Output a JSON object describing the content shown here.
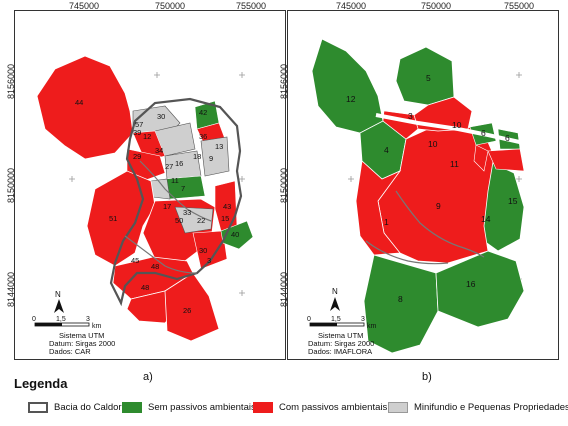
{
  "top_ticks": [
    "745000",
    "750000",
    "755000"
  ],
  "left_ticks": [
    "8156000",
    "8150000",
    "8144000"
  ],
  "panels": [
    {
      "letter": "a)",
      "info": [
        "Sistema UTM",
        "Datum: Sirgas 2000",
        "Dados: CAR"
      ],
      "scale": [
        "0",
        "1,5",
        "3",
        "km"
      ],
      "north": "N",
      "parcel_labels": [
        "44",
        "30",
        "42",
        "36",
        "39",
        "12",
        "57",
        "34",
        "29",
        "27",
        "16",
        "18",
        "13",
        "11",
        "7",
        "9",
        "51",
        "17",
        "50",
        "43",
        "33",
        "22",
        "15",
        "40",
        "30",
        "3",
        "45",
        "48",
        "48",
        "26"
      ]
    },
    {
      "letter": "b)",
      "info": [
        "Sistema UTM",
        "Datum: Sirgas 2000",
        "Dados: IMAFLORA"
      ],
      "scale": [
        "0",
        "1,5",
        "3",
        "km"
      ],
      "north": "N",
      "parcel_labels": [
        "5",
        "12",
        "3",
        "10",
        "6",
        "6",
        "4",
        "10",
        "11",
        "9",
        "15",
        "1",
        "8",
        "16",
        "14"
      ]
    }
  ],
  "legend": {
    "title": "Legenda",
    "items": [
      {
        "label": "Bacia do Caldor",
        "color": "#ffffff",
        "border": "#555555"
      },
      {
        "label": "Sem passivos ambientais",
        "color": "#2e8b2e",
        "border": "#2e8b2e"
      },
      {
        "label": "Com passivos ambientais",
        "color": "#ee1c1c",
        "border": "#ee1c1c"
      },
      {
        "label": "Minifundio e Pequenas Propriedades",
        "color": "#cfcfcf",
        "border": "#999999"
      }
    ]
  },
  "colors": {
    "green": "#2e8b2e",
    "red": "#ee1c1c",
    "gray": "#cfcfcf",
    "outline": "#555555"
  }
}
